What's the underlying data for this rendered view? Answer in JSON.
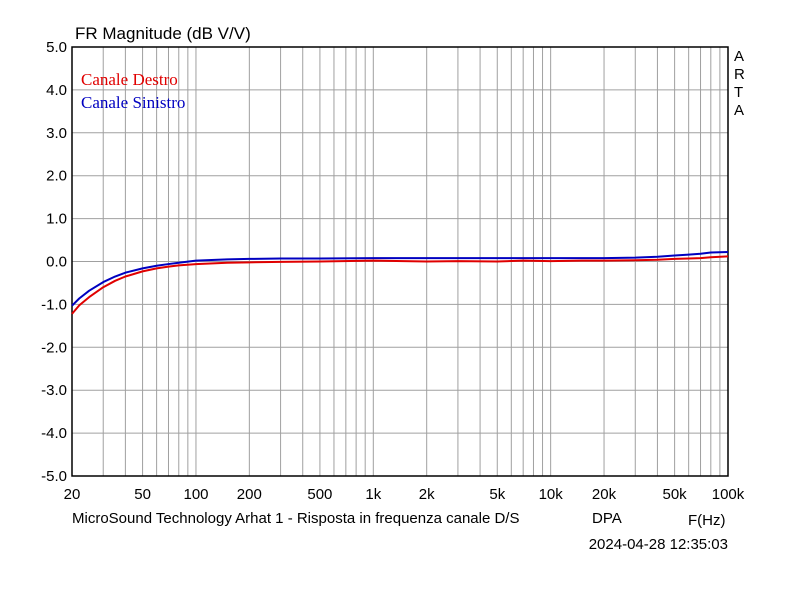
{
  "chart_data": {
    "type": "line",
    "title": "FR Magnitude (dB V/V)",
    "xlabel": "F(Hz)",
    "xscale": "log",
    "xlim": [
      20,
      100000
    ],
    "ylim": [
      -5.0,
      5.0
    ],
    "grid": true,
    "legend_placement": "top-left",
    "x_ticks": [
      {
        "value": 20,
        "label": "20"
      },
      {
        "value": 50,
        "label": "50"
      },
      {
        "value": 100,
        "label": "100"
      },
      {
        "value": 200,
        "label": "200"
      },
      {
        "value": 500,
        "label": "500"
      },
      {
        "value": 1000,
        "label": "1k"
      },
      {
        "value": 2000,
        "label": "2k"
      },
      {
        "value": 5000,
        "label": "5k"
      },
      {
        "value": 10000,
        "label": "10k"
      },
      {
        "value": 20000,
        "label": "20k"
      },
      {
        "value": 50000,
        "label": "50k"
      },
      {
        "value": 100000,
        "label": "100k"
      }
    ],
    "y_ticks": [
      {
        "value": 5,
        "label": "5.0"
      },
      {
        "value": 4,
        "label": "4.0"
      },
      {
        "value": 3,
        "label": "3.0"
      },
      {
        "value": 2,
        "label": "2.0"
      },
      {
        "value": 1,
        "label": "1.0"
      },
      {
        "value": 0,
        "label": "0.0"
      },
      {
        "value": -1,
        "label": "-1.0"
      },
      {
        "value": -2,
        "label": "-2.0"
      },
      {
        "value": -3,
        "label": "-3.0"
      },
      {
        "value": -4,
        "label": "-4.0"
      },
      {
        "value": -5,
        "label": "-5.0"
      }
    ],
    "series": [
      {
        "name": "Canale Destro",
        "color": "#e00000",
        "points": [
          [
            20,
            -1.22
          ],
          [
            22,
            -1.02
          ],
          [
            25,
            -0.83
          ],
          [
            30,
            -0.6
          ],
          [
            35,
            -0.45
          ],
          [
            40,
            -0.35
          ],
          [
            50,
            -0.23
          ],
          [
            60,
            -0.16
          ],
          [
            70,
            -0.12
          ],
          [
            80,
            -0.09
          ],
          [
            100,
            -0.06
          ],
          [
            150,
            -0.03
          ],
          [
            200,
            -0.02
          ],
          [
            300,
            -0.01
          ],
          [
            500,
            0.0
          ],
          [
            1000,
            0.02
          ],
          [
            2000,
            0.0
          ],
          [
            3000,
            0.01
          ],
          [
            5000,
            0.0
          ],
          [
            7000,
            0.02
          ],
          [
            10000,
            0.01
          ],
          [
            15000,
            0.02
          ],
          [
            20000,
            0.02
          ],
          [
            30000,
            0.03
          ],
          [
            40000,
            0.04
          ],
          [
            50000,
            0.06
          ],
          [
            60000,
            0.07
          ],
          [
            70000,
            0.08
          ],
          [
            80000,
            0.1
          ],
          [
            100000,
            0.12
          ]
        ]
      },
      {
        "name": "Canale Sinistro",
        "color": "#0000c0",
        "points": [
          [
            20,
            -1.03
          ],
          [
            22,
            -0.86
          ],
          [
            25,
            -0.68
          ],
          [
            30,
            -0.48
          ],
          [
            35,
            -0.35
          ],
          [
            40,
            -0.26
          ],
          [
            50,
            -0.16
          ],
          [
            60,
            -0.1
          ],
          [
            70,
            -0.06
          ],
          [
            80,
            -0.03
          ],
          [
            100,
            0.02
          ],
          [
            150,
            0.05
          ],
          [
            200,
            0.06
          ],
          [
            300,
            0.07
          ],
          [
            500,
            0.07
          ],
          [
            1000,
            0.08
          ],
          [
            2000,
            0.08
          ],
          [
            3000,
            0.08
          ],
          [
            5000,
            0.08
          ],
          [
            7000,
            0.08
          ],
          [
            10000,
            0.08
          ],
          [
            15000,
            0.08
          ],
          [
            20000,
            0.08
          ],
          [
            30000,
            0.09
          ],
          [
            40000,
            0.11
          ],
          [
            50000,
            0.14
          ],
          [
            60000,
            0.16
          ],
          [
            70000,
            0.18
          ],
          [
            80000,
            0.21
          ],
          [
            100000,
            0.22
          ]
        ]
      }
    ]
  },
  "side_label": [
    "A",
    "R",
    "T",
    "A"
  ],
  "footer": {
    "caption": "MicroSound Technology Arhat 1 - Risposta in frequenza canale D/S",
    "mode": "DPA",
    "timestamp": "2024-04-28  12:35:03"
  }
}
